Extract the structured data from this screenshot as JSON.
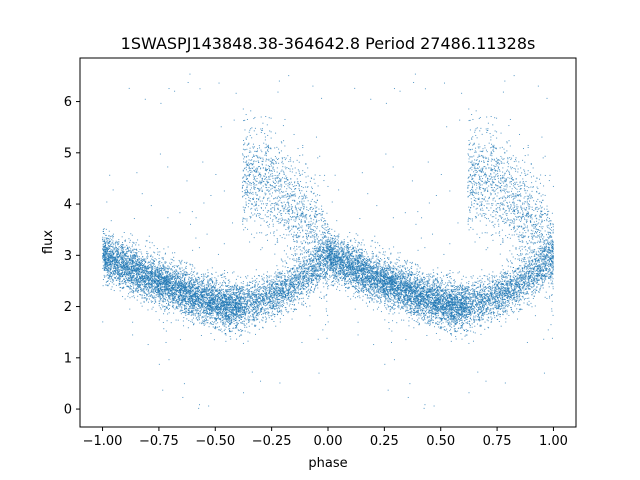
{
  "chart_data": {
    "type": "scatter",
    "title": "1SWASPJ143848.38-364642.8 Period 27486.11328s",
    "xlabel": "phase",
    "ylabel": "flux",
    "xlim": [
      -1.1,
      1.1
    ],
    "ylim": [
      -0.35,
      6.85
    ],
    "x_ticks": [
      -1.0,
      -0.75,
      -0.5,
      -0.25,
      0.0,
      0.25,
      0.5,
      0.75,
      1.0
    ],
    "x_tick_labels": [
      "−1.00",
      "−0.75",
      "−0.50",
      "−0.25",
      "0.00",
      "0.25",
      "0.50",
      "0.75",
      "1.00"
    ],
    "y_ticks": [
      0,
      1,
      2,
      3,
      4,
      5,
      6
    ],
    "y_tick_labels": [
      "0",
      "1",
      "2",
      "3",
      "4",
      "5",
      "6"
    ],
    "grid": false,
    "marker_color": "#1f77b4",
    "phase_profile": {
      "description_points_phase": [
        0.0,
        0.1,
        0.2,
        0.3,
        0.4,
        0.5,
        0.55,
        0.6,
        0.65,
        0.7,
        0.8,
        0.9,
        1.0
      ],
      "upper_branch_flux": [
        3.0,
        2.75,
        2.45,
        2.25,
        2.1,
        2.0,
        2.0,
        null,
        4.6,
        4.4,
        4.2,
        3.8,
        3.0
      ],
      "lower_branch_flux": [
        3.0,
        2.75,
        2.45,
        2.25,
        2.1,
        2.0,
        2.0,
        2.05,
        2.2,
        2.5,
        2.8,
        3.0,
        3.0
      ]
    }
  }
}
